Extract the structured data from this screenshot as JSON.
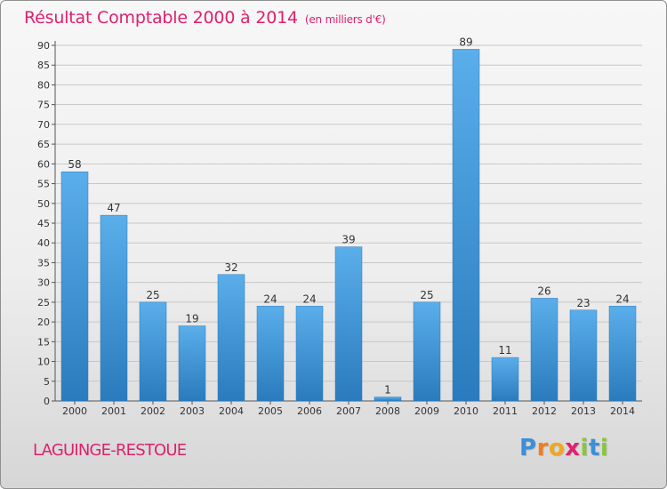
{
  "title": "Résultat Comptable 2000 à 2014",
  "subtitle": "(en milliers d'€)",
  "commune": "LAGUINGE-RESTOUE",
  "logo": {
    "letters": [
      "P",
      "r",
      "o",
      "x",
      "i",
      "t",
      "i"
    ],
    "colors": [
      "#3c8fd6",
      "#f07d1f",
      "#f0a71f",
      "#e0206e",
      "#8bc53f",
      "#3c8fd6",
      "#8bc53f"
    ]
  },
  "colors": {
    "bar_light": "#5aaeea",
    "bar_dark": "#2a7bbd",
    "title": "#e0206e",
    "grid": "#c7c7c7"
  },
  "chart_data": {
    "type": "bar",
    "categories": [
      "2000",
      "2001",
      "2002",
      "2003",
      "2004",
      "2005",
      "2006",
      "2007",
      "2008",
      "2009",
      "2010",
      "2011",
      "2012",
      "2013",
      "2014"
    ],
    "values": [
      58,
      47,
      25,
      19,
      32,
      24,
      24,
      39,
      1,
      25,
      89,
      11,
      26,
      23,
      24
    ],
    "ylim": [
      0,
      90
    ],
    "yticks": [
      0,
      5,
      10,
      15,
      20,
      25,
      30,
      35,
      40,
      45,
      50,
      55,
      60,
      65,
      70,
      75,
      80,
      85,
      90
    ],
    "xlabel": "",
    "ylabel": "",
    "grid": true,
    "data_labels": true
  }
}
